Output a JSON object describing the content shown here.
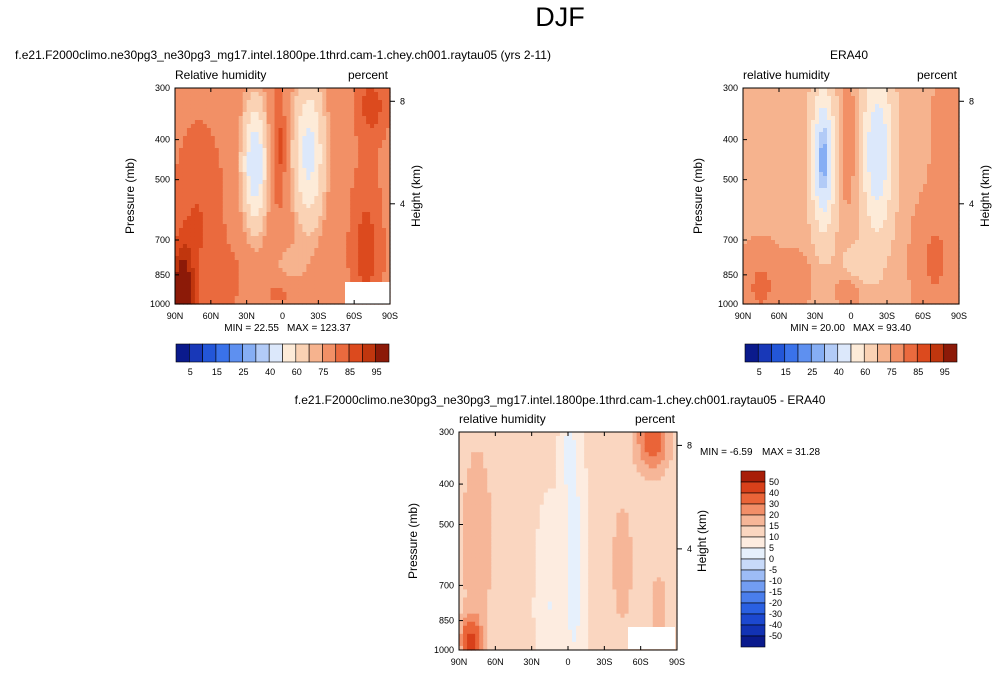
{
  "page": {
    "title": "DJF"
  },
  "palette": {
    "abs": [
      "#0a1a8c",
      "#1838b8",
      "#2356d8",
      "#3a72ea",
      "#5e90f0",
      "#86aef4",
      "#b2cbf7",
      "#dce8fb",
      "#fdebd8",
      "#fad2b4",
      "#f6b38e",
      "#f29066",
      "#ea6a3e",
      "#dc4a1e",
      "#c0360e",
      "#8c1a08"
    ],
    "diff": [
      "#0a1a8c",
      "#1232b4",
      "#1c48d0",
      "#2a60e2",
      "#4a7eec",
      "#729df2",
      "#9dbcf6",
      "#c8daf9",
      "#e6f0fc",
      "#fdece0",
      "#fad6c0",
      "#f6b698",
      "#f28e68",
      "#ea6438",
      "#d8401a",
      "#a81e08"
    ]
  },
  "chart_data": [
    {
      "type": "heatmap",
      "id": "model",
      "title": "f.e21.F2000climo.ne30pg3_ne30pg3_mg17.intel.1800pe.1thrd.cam-1.chey.ch001.raytau05 (yrs 2-11)",
      "left_label": "Relative humidity",
      "right_label": "percent",
      "ylabel": "Pressure (mb)",
      "y2label": "Height (km)",
      "x_ticks": [
        "90N",
        "60N",
        "30N",
        "0",
        "30S",
        "60S",
        "90S"
      ],
      "x_tick_values": [
        90,
        60,
        30,
        0,
        -30,
        -60,
        -90
      ],
      "y_ticks": [
        "300",
        "400",
        "500",
        "700",
        "850",
        "1000"
      ],
      "y_tick_values": [
        300,
        400,
        500,
        700,
        850,
        1000
      ],
      "y2_ticks": [
        "8",
        "4"
      ],
      "y2_tick_heights_km": [
        8,
        4
      ],
      "xlim": [
        90,
        -90
      ],
      "ylim": [
        300,
        1000
      ],
      "min_text": "MIN = 22.55",
      "max_text": "MAX = 123.37",
      "min": 22.55,
      "max": 123.37,
      "field": "model",
      "colorbar": {
        "orientation": "horizontal",
        "levels": [
          2.5,
          5,
          10,
          15,
          20,
          25,
          30,
          40,
          50,
          60,
          65,
          75,
          80,
          85,
          90,
          95
        ],
        "labels": [
          "5",
          "15",
          "25",
          "40",
          "60",
          "75",
          "85",
          "95"
        ]
      }
    },
    {
      "type": "heatmap",
      "id": "obs",
      "title": "ERA40",
      "left_label": "relative humidity",
      "right_label": "percent",
      "ylabel": "Pressure (mb)",
      "y2label": "Height (km)",
      "x_ticks": [
        "90N",
        "60N",
        "30N",
        "0",
        "30S",
        "60S",
        "90S"
      ],
      "x_tick_values": [
        90,
        60,
        30,
        0,
        -30,
        -60,
        -90
      ],
      "y_ticks": [
        "300",
        "400",
        "500",
        "700",
        "850",
        "1000"
      ],
      "y_tick_values": [
        300,
        400,
        500,
        700,
        850,
        1000
      ],
      "y2_ticks": [
        "8",
        "4"
      ],
      "y2_tick_heights_km": [
        8,
        4
      ],
      "xlim": [
        90,
        -90
      ],
      "ylim": [
        300,
        1000
      ],
      "min_text": "MIN = 20.00",
      "max_text": "MAX = 93.40",
      "min": 20.0,
      "max": 93.4,
      "field": "obs",
      "colorbar": {
        "orientation": "horizontal",
        "levels": [
          2.5,
          5,
          10,
          15,
          20,
          25,
          30,
          40,
          50,
          60,
          65,
          75,
          80,
          85,
          90,
          95
        ],
        "labels": [
          "5",
          "15",
          "25",
          "40",
          "60",
          "75",
          "85",
          "95"
        ]
      }
    },
    {
      "type": "heatmap",
      "id": "diff",
      "title": "f.e21.F2000climo.ne30pg3_ne30pg3_mg17.intel.1800pe.1thrd.cam-1.chey.ch001.raytau05 - ERA40",
      "left_label": "relative humidity",
      "right_label": "percent",
      "ylabel": "Pressure (mb)",
      "y2label": "Height (km)",
      "x_ticks": [
        "90N",
        "60N",
        "30N",
        "0",
        "30S",
        "60S",
        "90S"
      ],
      "x_tick_values": [
        90,
        60,
        30,
        0,
        -30,
        -60,
        -90
      ],
      "y_ticks": [
        "300",
        "400",
        "500",
        "700",
        "850",
        "1000"
      ],
      "y_tick_values": [
        300,
        400,
        500,
        700,
        850,
        1000
      ],
      "y2_ticks": [
        "8",
        "4"
      ],
      "y2_tick_heights_km": [
        8,
        4
      ],
      "xlim": [
        90,
        -90
      ],
      "ylim": [
        300,
        1000
      ],
      "min_text": "MIN = -6.59",
      "max_text": "MAX = 31.28",
      "min": -6.59,
      "max": 31.28,
      "field": "diff",
      "colorbar": {
        "orientation": "vertical",
        "levels": [
          -60,
          -50,
          -40,
          -30,
          -20,
          -15,
          -10,
          -5,
          0,
          5,
          10,
          15,
          20,
          30,
          40,
          50
        ],
        "labels": [
          "50",
          "40",
          "30",
          "20",
          "15",
          "10",
          "5",
          "0",
          "-5",
          "-10",
          "-15",
          "-20",
          "-30",
          "-40",
          "-50"
        ]
      }
    }
  ]
}
